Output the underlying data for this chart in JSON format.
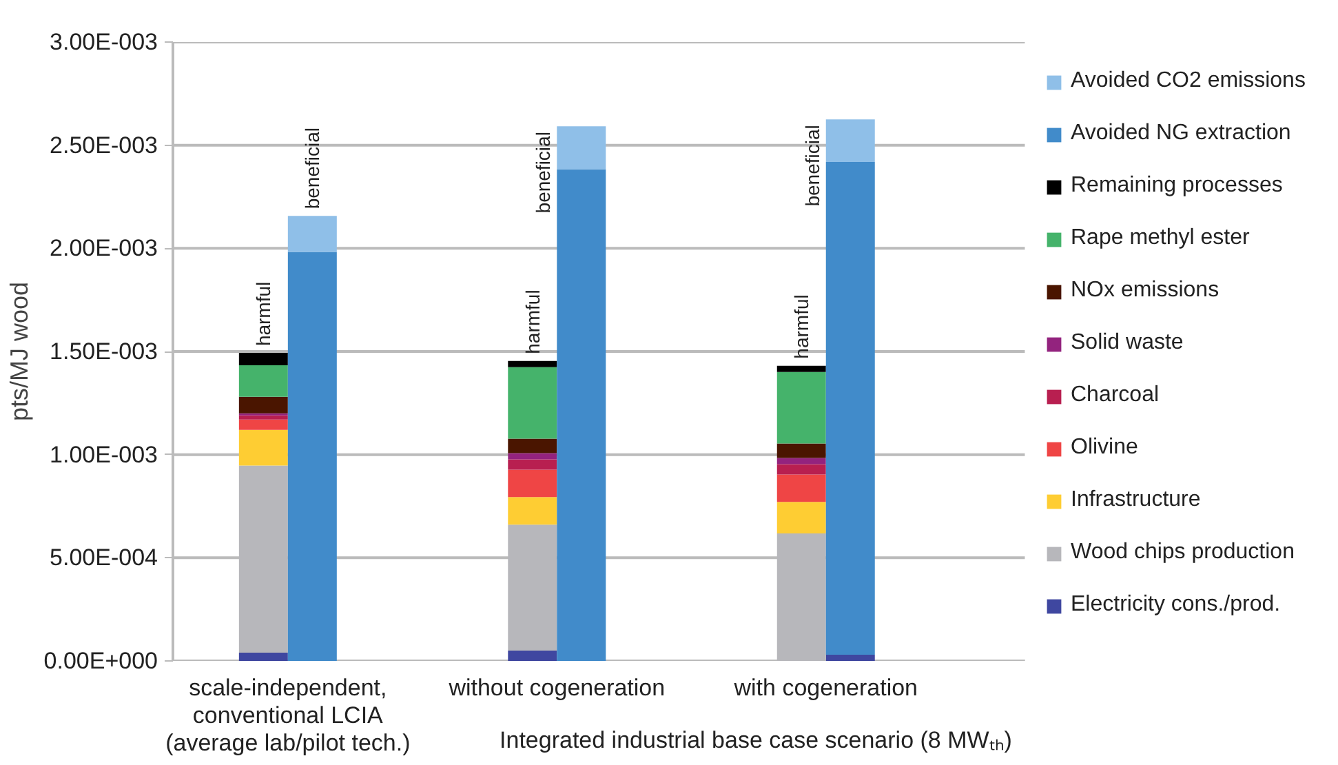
{
  "chart_data": {
    "type": "bar",
    "stacked": true,
    "ylabel": "pts/MJ wood",
    "xlabel": "Integrated industrial base case scenario (8 MWₜₕ)",
    "categories": [
      null,
      "scale-independent,\nconventional LCIA\n(average lab/pilot tech.)",
      null,
      null,
      null,
      null,
      null,
      null,
      null,
      null,
      null,
      null,
      "without cogeneration",
      null,
      null,
      null,
      null,
      null,
      null,
      null,
      null,
      null,
      null,
      "with cogeneration",
      null
    ],
    "annotations": [
      "harmful",
      "beneficial",
      "harmful",
      "beneficial",
      "harmful",
      "beneficial"
    ],
    "series": [
      {
        "name": "Electricity cons./prod.",
        "color": "#3f47a0",
        "values": [
          4e-05,
          null,
          null,
          null,
          null,
          null,
          null,
          null,
          null,
          null,
          null,
          5e-05,
          null,
          null,
          null,
          null,
          null,
          null,
          null,
          null,
          null,
          null,
          null,
          null,
          3e-05
        ]
      },
      {
        "name": "Wood chips production",
        "color": "#b7b7bb",
        "values": [
          0.000907,
          null,
          null,
          null,
          null,
          null,
          null,
          null,
          null,
          null,
          null,
          0.000611,
          null,
          null,
          null,
          null,
          null,
          null,
          null,
          null,
          null,
          null,
          0.000618,
          null,
          null
        ]
      },
      {
        "name": "Infrastructure",
        "color": "#fecd33",
        "values": [
          0.000173,
          null,
          null,
          null,
          null,
          null,
          null,
          null,
          null,
          null,
          null,
          0.000133,
          null,
          null,
          null,
          null,
          null,
          null,
          null,
          null,
          null,
          null,
          0.000153,
          null,
          null
        ]
      },
      {
        "name": "Olivine",
        "color": "#ef4545",
        "values": [
          5e-05,
          null,
          null,
          null,
          null,
          null,
          null,
          null,
          null,
          null,
          null,
          0.000133,
          null,
          null,
          null,
          null,
          null,
          null,
          null,
          null,
          null,
          null,
          0.000133,
          null,
          null
        ]
      },
      {
        "name": "Charcoal",
        "color": "#b81f50",
        "values": [
          2e-05,
          null,
          null,
          null,
          null,
          null,
          null,
          null,
          null,
          null,
          null,
          5e-05,
          null,
          null,
          null,
          null,
          null,
          null,
          null,
          null,
          null,
          null,
          5e-05,
          null,
          null
        ]
      },
      {
        "name": "Solid waste",
        "color": "#93237e",
        "values": [
          1e-05,
          null,
          null,
          null,
          null,
          null,
          null,
          null,
          null,
          null,
          null,
          3e-05,
          null,
          null,
          null,
          null,
          null,
          null,
          null,
          null,
          null,
          null,
          3e-05,
          null,
          null
        ]
      },
      {
        "name": "NOx emissions",
        "color": "#4a1500",
        "values": [
          8e-05,
          null,
          null,
          null,
          null,
          null,
          null,
          null,
          null,
          null,
          null,
          7e-05,
          null,
          null,
          null,
          null,
          null,
          null,
          null,
          null,
          null,
          null,
          7e-05,
          null,
          null
        ]
      },
      {
        "name": "Rape methyl ester",
        "color": "#45b36b",
        "values": [
          0.000153,
          null,
          null,
          null,
          null,
          null,
          null,
          null,
          null,
          null,
          null,
          0.000347,
          null,
          null,
          null,
          null,
          null,
          null,
          null,
          null,
          null,
          null,
          0.000347,
          null,
          null
        ]
      },
      {
        "name": "Remaining processes",
        "color": "#000000",
        "values": [
          6e-05,
          null,
          null,
          null,
          null,
          null,
          null,
          null,
          null,
          null,
          null,
          3e-05,
          null,
          null,
          null,
          null,
          null,
          null,
          null,
          null,
          null,
          null,
          3e-05,
          null,
          null
        ]
      },
      {
        "name": "Avoided NG extraction",
        "color": "#418bca",
        "values": [
          null,
          null,
          0.001983,
          null,
          null,
          null,
          null,
          null,
          null,
          null,
          null,
          null,
          null,
          0.002384,
          null,
          null,
          null,
          null,
          null,
          null,
          null,
          null,
          null,
          null,
          0.002389
        ]
      },
      {
        "name": "Avoided CO2 emissions",
        "color": "#8fbfe8",
        "values": [
          null,
          null,
          0.000174,
          null,
          null,
          null,
          null,
          null,
          null,
          null,
          null,
          null,
          null,
          0.000208,
          null,
          null,
          null,
          null,
          null,
          null,
          null,
          null,
          null,
          null,
          0.000206
        ]
      }
    ],
    "ylim": [
      0,
      0.003
    ],
    "yticks": [
      {
        "value": 0,
        "label": "0.00E+000"
      },
      {
        "value": 0.0005,
        "label": "5.00E-004"
      },
      {
        "value": 0.001,
        "label": "1.00E-003"
      },
      {
        "value": 0.0015,
        "label": "1.50E-003"
      },
      {
        "value": 0.002,
        "label": "2.00E-003"
      },
      {
        "value": 0.0025,
        "label": "2.50E-003"
      },
      {
        "value": 0.003,
        "label": "3.00E-003"
      }
    ],
    "grid": "y",
    "legend": "right"
  }
}
